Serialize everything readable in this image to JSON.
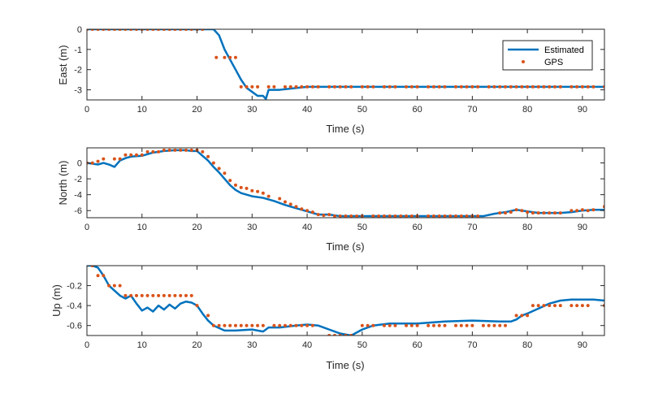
{
  "colors": {
    "estimated": "#0072BD",
    "gps": "#D95319",
    "axes": "#262626",
    "background": "#ffffff"
  },
  "legend": {
    "placement": "top-right",
    "entries": [
      "Estimated",
      "GPS"
    ]
  },
  "chart_data": [
    {
      "type": "line",
      "xlabel": "Time (s)",
      "ylabel": "East (m)",
      "xlim": [
        0,
        94
      ],
      "ylim": [
        -3.5,
        0
      ],
      "xticks": [
        0,
        10,
        20,
        30,
        40,
        50,
        60,
        70,
        80,
        90
      ],
      "yticks": [
        -3,
        -2,
        -1,
        0
      ],
      "grid": false,
      "series": [
        {
          "name": "Estimated",
          "style": "line",
          "x": [
            0,
            22,
            23,
            24,
            25,
            26,
            27,
            28,
            29,
            30,
            31,
            32,
            32.5,
            33,
            35,
            40,
            45,
            50,
            60,
            70,
            80,
            90,
            94
          ],
          "y": [
            0,
            0,
            0,
            -0.3,
            -1.0,
            -1.5,
            -2.0,
            -2.5,
            -2.9,
            -3.1,
            -3.3,
            -3.3,
            -3.45,
            -3.0,
            -3.0,
            -2.85,
            -2.85,
            -2.85,
            -2.85,
            -2.85,
            -2.85,
            -2.85,
            -2.85
          ]
        },
        {
          "name": "GPS",
          "style": "markers",
          "x": [
            0,
            1,
            2,
            3,
            4,
            5,
            6,
            7,
            8,
            9,
            10,
            11,
            12,
            13,
            14,
            15,
            16,
            17,
            18,
            19,
            20,
            21,
            23.5,
            25,
            26,
            27,
            28,
            29,
            30,
            31,
            33,
            34,
            36,
            37,
            38,
            39,
            40,
            41,
            42,
            44,
            45,
            46,
            47,
            48,
            50,
            51,
            52,
            54,
            55,
            56,
            58,
            59,
            60,
            62,
            63,
            64,
            65,
            67,
            68,
            69,
            70,
            71,
            73,
            74,
            75,
            76,
            77,
            78,
            79,
            80,
            81,
            82,
            83,
            84,
            85,
            86,
            88,
            89,
            90,
            91,
            92,
            94
          ],
          "y": [
            0,
            0,
            0,
            0,
            0,
            0,
            0,
            0,
            0,
            0,
            0,
            0,
            0,
            0,
            0,
            0,
            0,
            0,
            0,
            0,
            0,
            0,
            -1.4,
            -1.4,
            -1.4,
            -1.4,
            -2.85,
            -2.85,
            -2.85,
            -2.85,
            -2.85,
            -2.85,
            -2.85,
            -2.85,
            -2.85,
            -2.85,
            -2.85,
            -2.85,
            -2.85,
            -2.85,
            -2.85,
            -2.85,
            -2.85,
            -2.85,
            -2.85,
            -2.85,
            -2.85,
            -2.85,
            -2.85,
            -2.85,
            -2.85,
            -2.85,
            -2.85,
            -2.85,
            -2.85,
            -2.85,
            -2.85,
            -2.85,
            -2.85,
            -2.85,
            -2.85,
            -2.85,
            -2.85,
            -2.85,
            -2.85,
            -2.85,
            -2.85,
            -2.85,
            -2.85,
            -2.85,
            -2.85,
            -2.85,
            -2.85,
            -2.85,
            -2.85,
            -2.85,
            -2.85,
            -2.85,
            -2.85,
            -2.85,
            -2.85,
            -2.85
          ]
        }
      ]
    },
    {
      "type": "line",
      "xlabel": "Time (s)",
      "ylabel": "North (m)",
      "xlim": [
        0,
        94
      ],
      "ylim": [
        -6.9,
        1.9
      ],
      "xticks": [
        0,
        10,
        20,
        30,
        40,
        50,
        60,
        70,
        80,
        90
      ],
      "yticks": [
        -6,
        -4,
        -2,
        0
      ],
      "grid": false,
      "series": [
        {
          "name": "Estimated",
          "style": "line",
          "x": [
            0,
            1,
            2,
            3,
            4,
            5,
            6,
            7,
            8,
            10,
            12,
            14,
            16,
            18,
            19,
            20,
            21,
            22,
            23,
            24,
            25,
            26,
            27,
            28,
            30,
            32,
            34,
            36,
            38,
            40,
            42,
            44,
            46,
            48,
            50,
            55,
            60,
            65,
            70,
            72,
            74,
            76,
            78,
            80,
            82,
            84,
            86,
            88,
            90,
            92,
            94
          ],
          "y": [
            0,
            -0.1,
            -0.2,
            0,
            -0.2,
            -0.5,
            0.3,
            0.6,
            0.8,
            0.9,
            1.3,
            1.5,
            1.6,
            1.6,
            1.5,
            1.5,
            0.9,
            0.3,
            -0.5,
            -1.2,
            -2.0,
            -2.8,
            -3.4,
            -3.8,
            -4.2,
            -4.4,
            -4.8,
            -5.3,
            -5.7,
            -6.1,
            -6.5,
            -6.5,
            -6.7,
            -6.7,
            -6.7,
            -6.7,
            -6.7,
            -6.7,
            -6.7,
            -6.7,
            -6.4,
            -6.2,
            -5.9,
            -6.1,
            -6.3,
            -6.3,
            -6.3,
            -6.2,
            -6.0,
            -5.9,
            -5.9
          ]
        },
        {
          "name": "GPS",
          "style": "markers",
          "x": [
            0,
            1,
            2,
            3,
            5,
            6,
            7,
            8,
            9,
            10,
            11,
            12,
            13,
            14,
            15,
            16,
            17,
            18,
            19,
            20,
            21,
            22,
            23,
            24,
            25,
            26,
            27,
            28,
            29,
            30,
            31,
            32,
            33,
            35,
            36,
            37,
            38,
            39,
            40,
            41,
            42,
            43,
            44,
            45,
            46,
            47,
            48,
            49,
            50,
            52,
            53,
            54,
            55,
            56,
            57,
            58,
            59,
            60,
            62,
            63,
            64,
            65,
            66,
            67,
            68,
            69,
            70,
            71,
            75,
            76,
            77,
            78,
            79,
            80,
            81,
            82,
            83,
            84,
            85,
            86,
            88,
            89,
            90,
            91,
            92,
            94
          ],
          "y": [
            0,
            0,
            0.2,
            0.5,
            0.5,
            0.5,
            1.0,
            1.0,
            1.0,
            1.0,
            1.4,
            1.4,
            1.4,
            1.6,
            1.6,
            1.6,
            1.6,
            1.6,
            1.6,
            1.6,
            1.4,
            0.8,
            0,
            -0.7,
            -1.3,
            -2.2,
            -2.8,
            -3.1,
            -3.2,
            -3.5,
            -3.6,
            -3.8,
            -4.2,
            -4.5,
            -4.9,
            -5.2,
            -5.5,
            -5.8,
            -6.0,
            -6.2,
            -6.5,
            -6.6,
            -6.5,
            -6.7,
            -6.7,
            -6.7,
            -6.7,
            -6.7,
            -6.7,
            -6.7,
            -6.7,
            -6.7,
            -6.7,
            -6.7,
            -6.7,
            -6.7,
            -6.7,
            -6.7,
            -6.7,
            -6.7,
            -6.7,
            -6.7,
            -6.7,
            -6.7,
            -6.7,
            -6.7,
            -6.7,
            -6.7,
            -6.3,
            -6.3,
            -6.2,
            -5.9,
            -6.0,
            -6.2,
            -6.3,
            -6.3,
            -6.3,
            -6.3,
            -6.3,
            -6.3,
            -6.0,
            -6.0,
            -5.9,
            -6.0,
            -5.9,
            -5.5
          ]
        }
      ]
    },
    {
      "type": "line",
      "xlabel": "Time (s)",
      "ylabel": "Up (m)",
      "xlim": [
        0,
        94
      ],
      "ylim": [
        -0.7,
        0
      ],
      "xticks": [
        0,
        10,
        20,
        30,
        40,
        50,
        60,
        70,
        80,
        90
      ],
      "yticks": [
        -0.6,
        -0.4,
        -0.2
      ],
      "grid": false,
      "series": [
        {
          "name": "Estimated",
          "style": "line",
          "x": [
            0,
            1,
            2,
            3,
            4,
            5,
            6,
            7,
            8,
            9,
            10,
            11,
            12,
            13,
            14,
            15,
            16,
            17,
            18,
            19,
            20,
            21,
            22,
            23,
            25,
            27,
            30,
            32,
            33,
            35,
            38,
            40,
            42,
            44,
            46,
            48,
            50,
            52,
            55,
            60,
            65,
            70,
            75,
            77,
            78,
            79,
            80,
            82,
            84,
            86,
            88,
            90,
            92,
            94
          ],
          "y": [
            0,
            0,
            -0.02,
            -0.1,
            -0.2,
            -0.25,
            -0.3,
            -0.33,
            -0.3,
            -0.38,
            -0.45,
            -0.42,
            -0.46,
            -0.4,
            -0.44,
            -0.39,
            -0.43,
            -0.38,
            -0.36,
            -0.37,
            -0.4,
            -0.48,
            -0.55,
            -0.6,
            -0.65,
            -0.65,
            -0.64,
            -0.66,
            -0.62,
            -0.62,
            -0.6,
            -0.59,
            -0.6,
            -0.64,
            -0.68,
            -0.7,
            -0.64,
            -0.6,
            -0.58,
            -0.58,
            -0.56,
            -0.55,
            -0.56,
            -0.56,
            -0.54,
            -0.5,
            -0.48,
            -0.43,
            -0.38,
            -0.35,
            -0.34,
            -0.34,
            -0.34,
            -0.35
          ]
        },
        {
          "name": "GPS",
          "style": "markers",
          "x": [
            1,
            2,
            3,
            4,
            5,
            6,
            7,
            8,
            9,
            10,
            11,
            12,
            13,
            14,
            15,
            16,
            17,
            18,
            19,
            20,
            22,
            23,
            24,
            25,
            26,
            27,
            28,
            29,
            30,
            31,
            32,
            34,
            35,
            36,
            37,
            38,
            39,
            40,
            41,
            44,
            45,
            46,
            47,
            48,
            50,
            51,
            52,
            54,
            55,
            56,
            58,
            59,
            60,
            62,
            63,
            64,
            65,
            67,
            68,
            69,
            70,
            72,
            73,
            74,
            75,
            76,
            78,
            79,
            80,
            81,
            82,
            83,
            84,
            85,
            86,
            88,
            89,
            90,
            91,
            94
          ],
          "y": [
            0,
            -0.1,
            -0.1,
            -0.2,
            -0.2,
            -0.2,
            -0.3,
            -0.3,
            -0.3,
            -0.3,
            -0.3,
            -0.3,
            -0.3,
            -0.3,
            -0.3,
            -0.3,
            -0.3,
            -0.3,
            -0.3,
            -0.4,
            -0.5,
            -0.6,
            -0.6,
            -0.6,
            -0.6,
            -0.6,
            -0.6,
            -0.6,
            -0.6,
            -0.6,
            -0.6,
            -0.6,
            -0.6,
            -0.6,
            -0.6,
            -0.6,
            -0.6,
            -0.6,
            -0.6,
            -0.7,
            -0.7,
            -0.7,
            -0.7,
            -0.7,
            -0.6,
            -0.6,
            -0.6,
            -0.6,
            -0.6,
            -0.6,
            -0.6,
            -0.6,
            -0.6,
            -0.6,
            -0.6,
            -0.6,
            -0.6,
            -0.6,
            -0.6,
            -0.6,
            -0.6,
            -0.6,
            -0.6,
            -0.6,
            -0.6,
            -0.6,
            -0.5,
            -0.5,
            -0.5,
            -0.4,
            -0.4,
            -0.4,
            -0.4,
            -0.4,
            -0.4,
            -0.4,
            -0.4,
            -0.4,
            -0.4,
            -0.4
          ]
        }
      ]
    }
  ]
}
